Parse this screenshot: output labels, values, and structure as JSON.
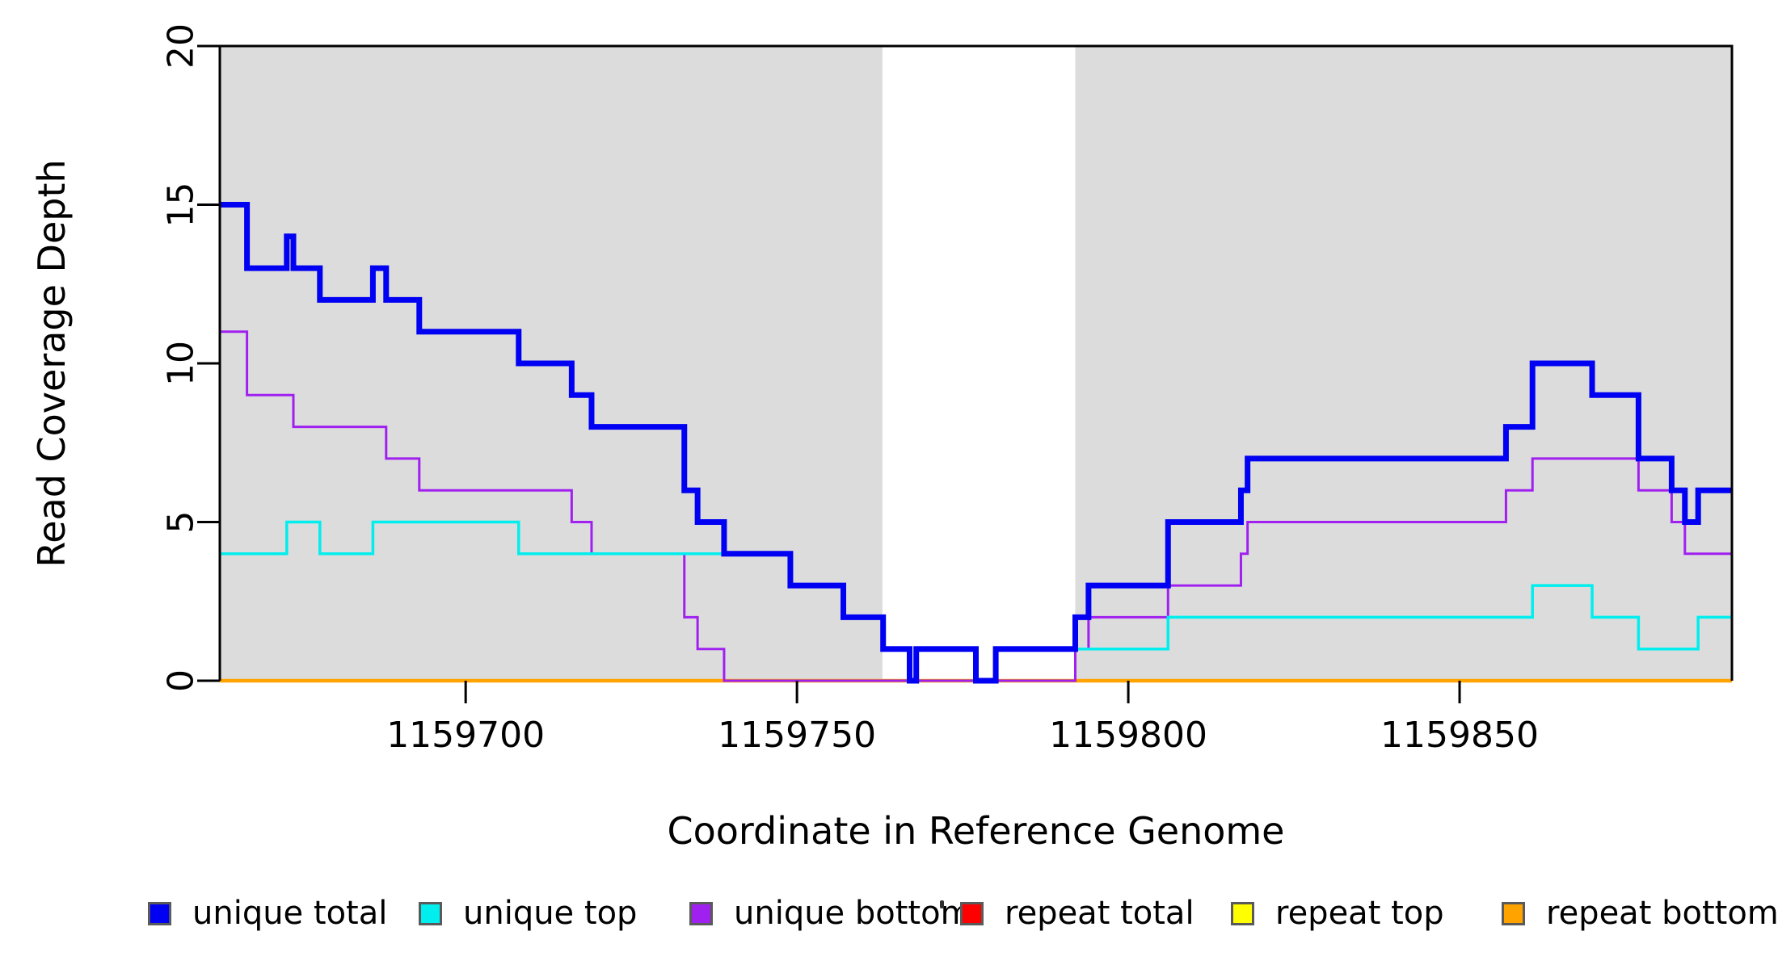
{
  "chart_data": {
    "type": "line",
    "subtype": "step",
    "title": "",
    "xlabel": "Coordinate in Reference Genome",
    "ylabel": "Read Coverage Depth",
    "xlim": [
      1159662.9,
      1159891.1
    ],
    "ylim": [
      0,
      20
    ],
    "x_ticks": [
      1159700,
      1159750,
      1159800,
      1159850
    ],
    "y_ticks": [
      0,
      5,
      10,
      15,
      20
    ],
    "grid": false,
    "axis_color": "#000000",
    "plot_background": "#ffffff",
    "shaded_regions": [
      {
        "name": "shaded-region-left",
        "x_start": 1159662.9,
        "x_end": 1159762.9,
        "color": "#DCDCDC"
      },
      {
        "name": "shaded-region-right",
        "x_start": 1159792.0,
        "x_end": 1159891.1,
        "color": "#DCDCDC"
      }
    ],
    "gap_region": {
      "name": "unshaded-gap",
      "x_start": 1159762.9,
      "x_end": 1159792.0,
      "color": "#FFFFFF"
    },
    "series": [
      {
        "name": "unique total",
        "color": "#0000F2",
        "line_width": 7,
        "zorder": 6,
        "steps": [
          [
            1159662.9,
            15
          ],
          [
            1159667,
            13
          ],
          [
            1159673,
            14
          ],
          [
            1159674,
            13
          ],
          [
            1159678,
            12
          ],
          [
            1159686,
            13
          ],
          [
            1159688,
            12
          ],
          [
            1159693,
            11
          ],
          [
            1159708,
            10
          ],
          [
            1159716,
            9
          ],
          [
            1159719,
            8
          ],
          [
            1159733,
            6
          ],
          [
            1159735,
            5
          ],
          [
            1159739,
            4
          ],
          [
            1159749,
            3
          ],
          [
            1159757,
            2
          ],
          [
            1159763,
            1
          ],
          [
            1159767,
            0
          ],
          [
            1159768,
            1
          ],
          [
            1159777,
            0
          ],
          [
            1159780,
            1
          ],
          [
            1159792,
            2
          ],
          [
            1159794,
            3
          ],
          [
            1159806,
            5
          ],
          [
            1159817,
            6
          ],
          [
            1159818,
            7
          ],
          [
            1159857,
            8
          ],
          [
            1159861,
            10
          ],
          [
            1159870,
            9
          ],
          [
            1159877,
            7
          ],
          [
            1159882,
            6
          ],
          [
            1159884,
            5
          ],
          [
            1159886,
            6
          ]
        ]
      },
      {
        "name": "unique top",
        "color": "#00EEEE",
        "line_width": 3.5,
        "zorder": 5,
        "steps": [
          [
            1159662.9,
            4
          ],
          [
            1159673,
            5
          ],
          [
            1159678,
            4
          ],
          [
            1159686,
            5
          ],
          [
            1159708,
            4
          ],
          [
            1159749,
            3
          ],
          [
            1159757,
            2
          ],
          [
            1159763,
            1
          ],
          [
            1159767,
            0
          ],
          [
            1159768,
            1
          ],
          [
            1159777,
            0
          ],
          [
            1159780,
            1
          ],
          [
            1159806,
            2
          ],
          [
            1159861,
            3
          ],
          [
            1159870,
            2
          ],
          [
            1159877,
            1
          ],
          [
            1159886,
            2
          ]
        ]
      },
      {
        "name": "unique bottom",
        "color": "#A020F0",
        "line_width": 3,
        "zorder": 4,
        "steps": [
          [
            1159662.9,
            11
          ],
          [
            1159667,
            9
          ],
          [
            1159674,
            8
          ],
          [
            1159688,
            7
          ],
          [
            1159693,
            6
          ],
          [
            1159716,
            5
          ],
          [
            1159719,
            4
          ],
          [
            1159733,
            2
          ],
          [
            1159735,
            1
          ],
          [
            1159739,
            0
          ],
          [
            1159792,
            1
          ],
          [
            1159794,
            2
          ],
          [
            1159806,
            3
          ],
          [
            1159817,
            4
          ],
          [
            1159818,
            5
          ],
          [
            1159857,
            6
          ],
          [
            1159861,
            7
          ],
          [
            1159877,
            6
          ],
          [
            1159882,
            5
          ],
          [
            1159884,
            4
          ]
        ]
      },
      {
        "name": "repeat total",
        "color": "#FF0000",
        "line_width": 3,
        "zorder": 1,
        "steps": [
          [
            1159662.9,
            0
          ]
        ]
      },
      {
        "name": "repeat top",
        "color": "#FFFF00",
        "line_width": 3,
        "zorder": 2,
        "steps": [
          [
            1159662.9,
            0
          ]
        ]
      },
      {
        "name": "repeat bottom",
        "color": "#FFA300",
        "line_width": 4.5,
        "zorder": 3,
        "steps": [
          [
            1159662.9,
            0
          ]
        ]
      }
    ],
    "legend": {
      "position": "bottom",
      "items": [
        {
          "label": "unique total",
          "color": "#0000F2"
        },
        {
          "label": "unique top",
          "color": "#00EEEE"
        },
        {
          "label": "unique bottom",
          "color": "#A020F0"
        },
        {
          "label": "repeat total",
          "color": "#FF0000"
        },
        {
          "label": "repeat top",
          "color": "#FFFF00"
        },
        {
          "label": "repeat bottom",
          "color": "#FFA300"
        }
      ]
    }
  }
}
